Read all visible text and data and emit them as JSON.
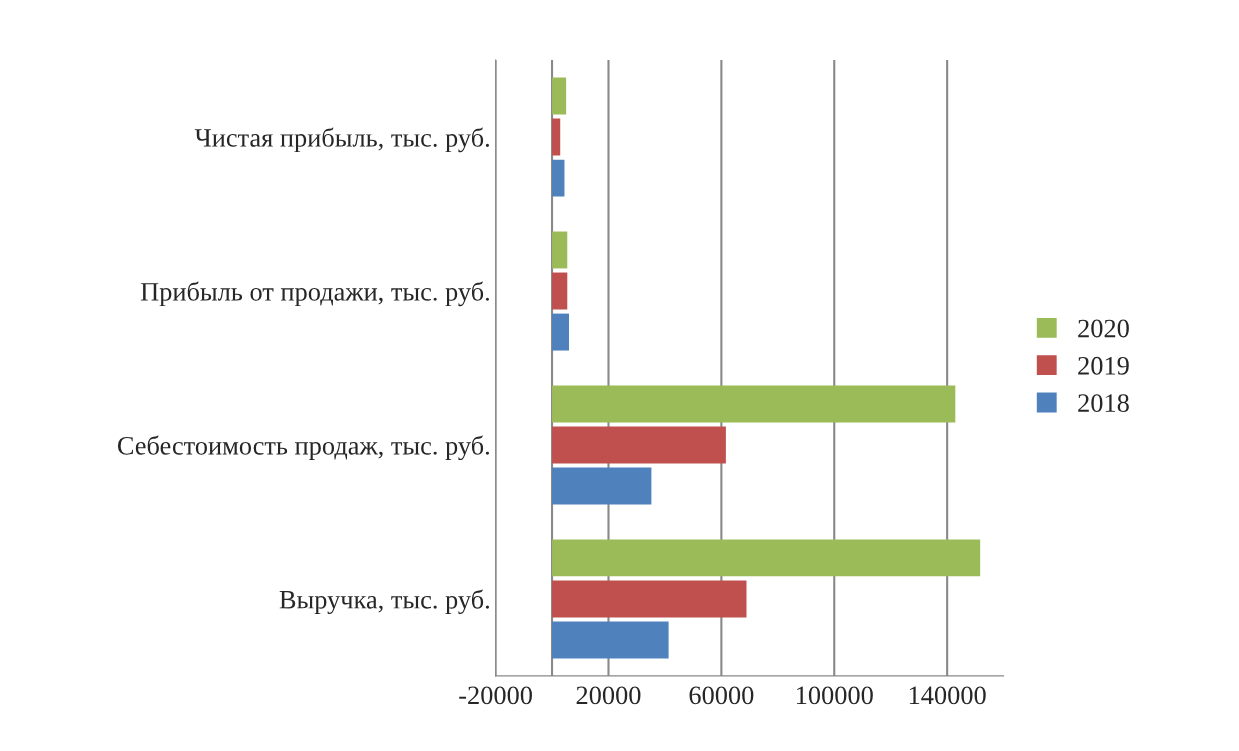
{
  "chart_data": {
    "type": "bar",
    "orientation": "horizontal",
    "categories": [
      "Чистая прибыль, тыс. руб.",
      "Прибыль от продажи, тыс. руб.",
      "Себестоимость продаж, тыс. руб.",
      "Выручка, тыс. руб."
    ],
    "series": [
      {
        "name": "2018",
        "color": "#4f81bd",
        "values": [
          4400,
          6000,
          35200,
          41300
        ]
      },
      {
        "name": "2019",
        "color": "#c0504d",
        "values": [
          2900,
          5400,
          61600,
          68900
        ]
      },
      {
        "name": "2020",
        "color": "#9bbb59",
        "values": [
          5000,
          5400,
          142900,
          151700
        ]
      }
    ],
    "xlim": [
      -20000,
      160000
    ],
    "xticks": [
      -20000,
      20000,
      60000,
      100000,
      140000
    ],
    "grid": "x",
    "legend": "right"
  }
}
